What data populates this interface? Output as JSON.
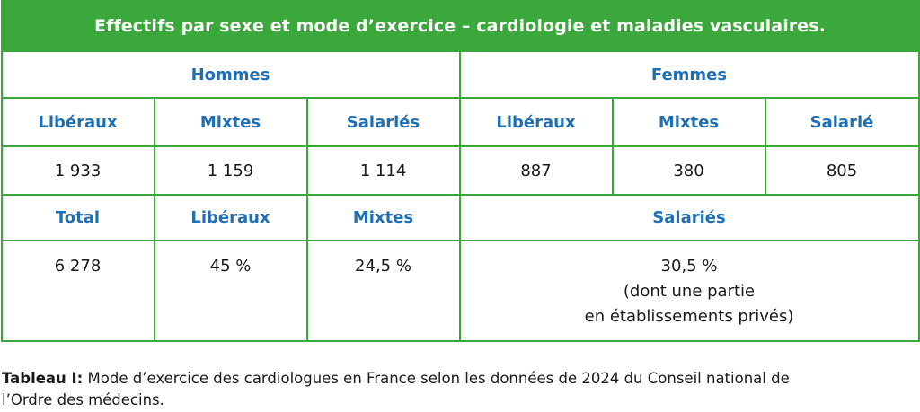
{
  "table": {
    "title": "Effectifs par sexe et mode d’exercice – cardiologie et maladies vasculaires.",
    "groups": {
      "men": "Hommes",
      "women": "Femmes"
    },
    "subheaders": {
      "men": [
        "Libéraux",
        "Mixtes",
        "Salariés"
      ],
      "women": [
        "Libéraux",
        "Mixtes",
        "Salarié"
      ]
    },
    "counts": {
      "men": [
        "1 933",
        "1 159",
        "1 114"
      ],
      "women": [
        "887",
        "380",
        "805"
      ]
    },
    "summary_headers": [
      "Total",
      "Libéraux",
      "Mixtes",
      "Salariés"
    ],
    "summary_values": {
      "total": "6 278",
      "liberaux": "45 %",
      "mixtes": "24,5 %",
      "salaries_line1": "30,5 %",
      "salaries_line2": "(dont une partie",
      "salaries_line3": "en établissements privés)"
    }
  },
  "caption": {
    "label": "Tableau I:",
    "line1": " Mode d’exercice des cardiologues en France selon les données de 2024 du Conseil national de",
    "line2": "l’Ordre des médecins."
  },
  "colors": {
    "green": "#3aa83a",
    "blue": "#1f6fb5"
  }
}
